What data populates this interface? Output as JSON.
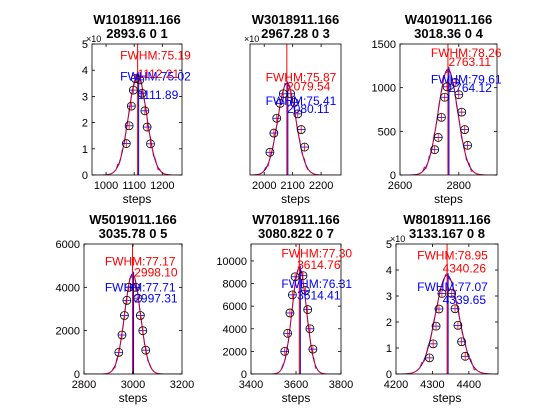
{
  "figure": {
    "background": "#ffffff"
  },
  "colors": {
    "data": "#ff0000",
    "fit": "#0000ff",
    "marker": "#000000",
    "axis": "#000000"
  },
  "chart_data": [
    {
      "type": "line",
      "title": [
        "W1018911.166",
        "2893.6 0 1"
      ],
      "xlabel": "steps",
      "xlim": [
        950,
        1270
      ],
      "xticks": [
        1000,
        1100,
        1200
      ],
      "xtick_labels": [
        "1000",
        "1100",
        "1200"
      ],
      "ylim": [
        0,
        50000
      ],
      "yticks": [
        0,
        10000,
        20000,
        30000,
        40000,
        50000
      ],
      "ytick_labels": [
        "0",
        "1",
        "2",
        "3",
        "4",
        "5"
      ],
      "y_exponent_label": "×10",
      "center": 1112.21,
      "sigma": 32,
      "peak": 38000,
      "markers": [
        [
          1072,
          12000
        ],
        [
          1082,
          18800
        ],
        [
          1090,
          26300
        ],
        [
          1097,
          32400
        ],
        [
          1104,
          36800
        ],
        [
          1120,
          36300
        ],
        [
          1128,
          31200
        ],
        [
          1138,
          24500
        ],
        [
          1146,
          18300
        ],
        [
          1158,
          11900
        ]
      ],
      "annotations": [
        {
          "text": "FWHM:75.19",
          "color": "#ff0000",
          "x": 1050,
          "y": 44000
        },
        {
          "text": "1112.21",
          "color": "#ff0000",
          "x": 1112,
          "y": 37000
        },
        {
          "text": "FWHM:75.02",
          "color": "#0000ff",
          "x": 1050,
          "y": 36000
        },
        {
          "text": "1111.89",
          "color": "#0000ff",
          "x": 1112,
          "y": 29000
        }
      ]
    },
    {
      "type": "line",
      "title": [
        "W3018911.166",
        "2967.28 0 3"
      ],
      "xlabel": "steps",
      "xlim": [
        1950,
        2270
      ],
      "xticks": [
        2000,
        2100,
        2200
      ],
      "xtick_labels": [
        "2000",
        "2100",
        "2200"
      ],
      "ylim": [
        0,
        15000
      ],
      "yticks": [],
      "ytick_labels": [],
      "y_exponent_label": "×10",
      "center": 2079.54,
      "sigma": 32,
      "peak": 10500,
      "markers": [
        [
          2020,
          2600
        ],
        [
          2034,
          4800
        ],
        [
          2044,
          6500
        ],
        [
          2056,
          8200
        ],
        [
          2067,
          9300
        ],
        [
          2093,
          9300
        ],
        [
          2106,
          8300
        ],
        [
          2118,
          7000
        ],
        [
          2130,
          5200
        ],
        [
          2142,
          3200
        ]
      ],
      "annotations": [
        {
          "text": "FWHM:75.87",
          "color": "#ff0000",
          "x": 2005,
          "y": 10700
        },
        {
          "text": "2079.54",
          "color": "#ff0000",
          "x": 2080,
          "y": 9700
        },
        {
          "text": "FWHM:75.41",
          "color": "#0000ff",
          "x": 2005,
          "y": 8000
        },
        {
          "text": "2080.11",
          "color": "#0000ff",
          "x": 2080,
          "y": 7100
        }
      ]
    },
    {
      "type": "line",
      "title": [
        "W4019011.166",
        "3018.36 0 4"
      ],
      "xlabel": "steps",
      "xlim": [
        2600,
        2930
      ],
      "xticks": [
        2600,
        2800
      ],
      "xtick_labels": [
        "2600",
        "2800"
      ],
      "ylim": [
        0,
        1500
      ],
      "yticks": [
        0,
        500,
        1000,
        1500
      ],
      "ytick_labels": [
        "0",
        "500",
        "1000",
        "1500"
      ],
      "y_exponent_label": "",
      "center": 2763.11,
      "sigma": 33,
      "peak": 1210,
      "markers": [
        [
          2718,
          290
        ],
        [
          2730,
          430
        ],
        [
          2741,
          660
        ],
        [
          2752,
          890
        ],
        [
          2760,
          1010
        ],
        [
          2788,
          1060
        ],
        [
          2800,
          920
        ],
        [
          2810,
          720
        ],
        [
          2820,
          520
        ],
        [
          2830,
          340
        ]
      ],
      "annotations": [
        {
          "text": "FWHM:78.26",
          "color": "#ff0000",
          "x": 2705,
          "y": 1350
        },
        {
          "text": "2763.11",
          "color": "#ff0000",
          "x": 2765,
          "y": 1250
        },
        {
          "text": "FWHM:79.61",
          "color": "#0000ff",
          "x": 2705,
          "y": 1050
        },
        {
          "text": "2764.12",
          "color": "#0000ff",
          "x": 2765,
          "y": 950
        }
      ]
    },
    {
      "type": "line",
      "title": [
        "W5019011.166",
        "3035.78 0 5"
      ],
      "xlabel": "steps",
      "xlim": [
        2800,
        3200
      ],
      "xticks": [
        2800,
        3000,
        3200
      ],
      "xtick_labels": [
        "2800",
        "3000",
        "3200"
      ],
      "ylim": [
        0,
        6000
      ],
      "yticks": [
        0,
        2000,
        4000,
        6000
      ],
      "ytick_labels": [
        "0",
        "2000",
        "4000",
        "6000"
      ],
      "y_exponent_label": "",
      "center": 2998.1,
      "sigma": 32,
      "peak": 4620,
      "markers": [
        [
          2942,
          1000
        ],
        [
          2955,
          1800
        ],
        [
          2965,
          2700
        ],
        [
          2975,
          3400
        ],
        [
          2983,
          4000
        ],
        [
          3011,
          4000
        ],
        [
          3020,
          3500
        ],
        [
          3030,
          2700
        ],
        [
          3040,
          2000
        ],
        [
          3052,
          1100
        ]
      ],
      "annotations": [
        {
          "text": "FWHM:77.17",
          "color": "#ff0000",
          "x": 2885,
          "y": 5000
        },
        {
          "text": "2998.10",
          "color": "#ff0000",
          "x": 3005,
          "y": 4500
        },
        {
          "text": "FWHM:77.71",
          "color": "#0000ff",
          "x": 2885,
          "y": 3800
        },
        {
          "text": "2997.31",
          "color": "#0000ff",
          "x": 3005,
          "y": 3300
        }
      ]
    },
    {
      "type": "line",
      "title": [
        "W7018911.166",
        "3080.822 0 7"
      ],
      "xlabel": "steps",
      "xlim": [
        3400,
        3800
      ],
      "xticks": [
        3400,
        3600,
        3800
      ],
      "xtick_labels": [
        "3400",
        "3600",
        "3800"
      ],
      "ylim": [
        0,
        11500
      ],
      "yticks": [
        0,
        2000,
        4000,
        6000,
        8000,
        10000
      ],
      "ytick_labels": [
        "0",
        "2000",
        "4000",
        "6000",
        "8000",
        "10000"
      ],
      "y_exponent_label": "",
      "center": 3614.76,
      "sigma": 32,
      "peak": 9400,
      "markers": [
        [
          3550,
          2000
        ],
        [
          3563,
          3600
        ],
        [
          3573,
          5400
        ],
        [
          3584,
          7000
        ],
        [
          3596,
          8600
        ],
        [
          3631,
          8700
        ],
        [
          3642,
          7400
        ],
        [
          3652,
          5700
        ],
        [
          3662,
          4000
        ],
        [
          3675,
          2200
        ]
      ],
      "annotations": [
        {
          "text": "FWHM:77.30",
          "color": "#ff0000",
          "x": 3535,
          "y": 10300
        },
        {
          "text": "3614.76",
          "color": "#ff0000",
          "x": 3605,
          "y": 9300
        },
        {
          "text": "FWHM:76.31",
          "color": "#0000ff",
          "x": 3535,
          "y": 7600
        },
        {
          "text": "3614.41",
          "color": "#0000ff",
          "x": 3605,
          "y": 6600
        }
      ]
    },
    {
      "type": "line",
      "title": [
        "W8018911.166",
        "3133.167 0 8"
      ],
      "xlabel": "steps",
      "xlim": [
        4200,
        4480
      ],
      "xticks": [
        4200,
        4300,
        4400
      ],
      "xtick_labels": [
        "4200",
        "4300",
        "4400"
      ],
      "ylim": [
        0,
        50000
      ],
      "yticks": [
        0,
        10000,
        20000,
        30000,
        40000,
        50000
      ],
      "ytick_labels": [
        "0",
        "1",
        "2",
        "3",
        "4",
        "5"
      ],
      "y_exponent_label": "×10",
      "center": 4340.26,
      "sigma": 32,
      "peak": 38000,
      "markers": [
        [
          4292,
          6200
        ],
        [
          4302,
          11600
        ],
        [
          4310,
          18400
        ],
        [
          4318,
          25000
        ],
        [
          4326,
          31000
        ],
        [
          4353,
          31000
        ],
        [
          4362,
          25100
        ],
        [
          4370,
          18700
        ],
        [
          4380,
          12400
        ],
        [
          4390,
          6800
        ]
      ],
      "annotations": [
        {
          "text": "FWHM:78.95",
          "color": "#ff0000",
          "x": 4258,
          "y": 44000
        },
        {
          "text": "4340.26",
          "color": "#ff0000",
          "x": 4328,
          "y": 39000
        },
        {
          "text": "FWHM:77.07",
          "color": "#0000ff",
          "x": 4258,
          "y": 32000
        },
        {
          "text": "4339.65",
          "color": "#0000ff",
          "x": 4328,
          "y": 27000
        }
      ]
    }
  ]
}
